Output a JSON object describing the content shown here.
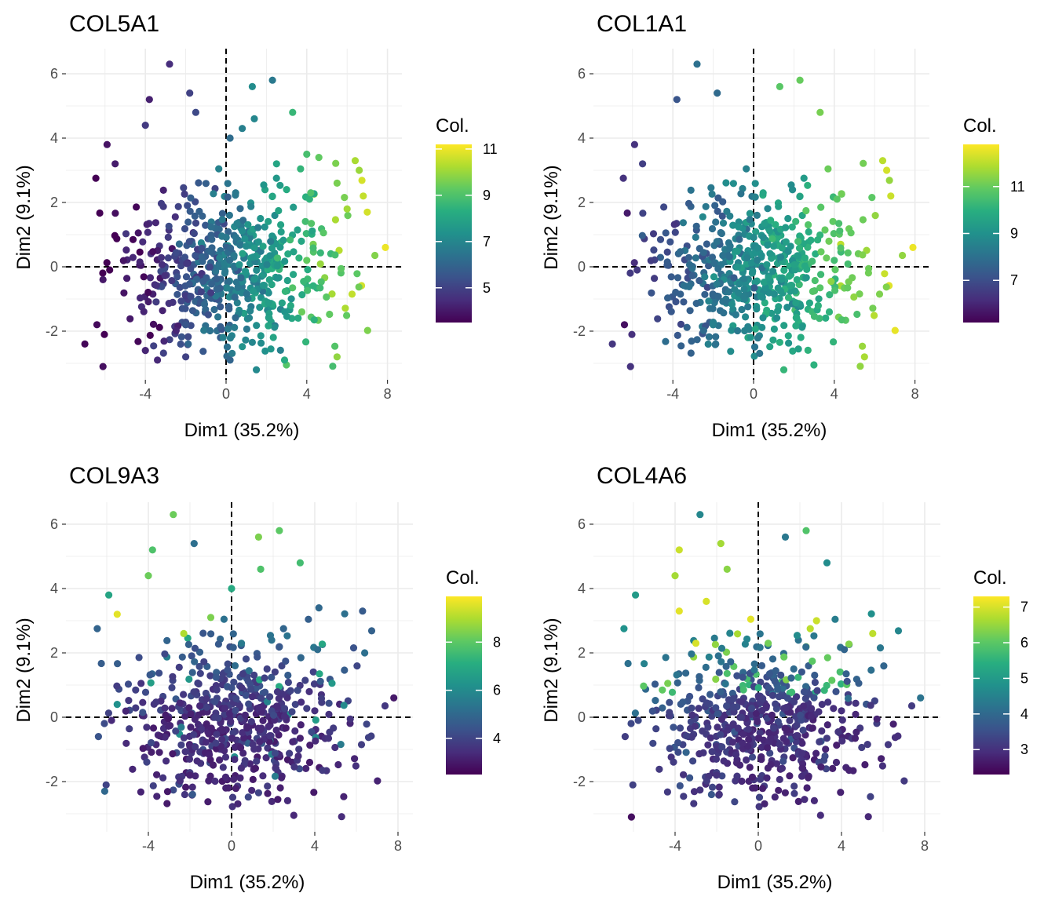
{
  "chart_data": [
    {
      "type": "scatter",
      "title": "COL5A1",
      "xlabel": "Dim1 (35.2%)",
      "ylabel": "Dim2 (9.1%)",
      "xlim": [
        -7.0,
        8.8
      ],
      "ylim": [
        -3.5,
        6.6
      ],
      "xticks": [
        "-4",
        "0",
        "4",
        "8"
      ],
      "yticks": [
        "-2",
        "0",
        "2",
        "4",
        "6"
      ],
      "legend_title": "Col.",
      "legend_ticks": [
        "5",
        "7",
        "9",
        "11"
      ],
      "color_range": [
        3.5,
        11.2
      ],
      "legend_position": "right",
      "colormap": "viridis",
      "grid": true,
      "reference_lines": {
        "x": 0,
        "y": 0,
        "style": "dashed"
      },
      "points": [
        {
          "x": -2.8,
          "y": 6.3,
          "c": 4.5
        },
        {
          "x": 1.3,
          "y": 5.6,
          "c": 7.2
        },
        {
          "x": 2.3,
          "y": 5.8,
          "c": 6.6
        },
        {
          "x": 3.3,
          "y": 4.8,
          "c": 8.6
        },
        {
          "x": -3.8,
          "y": 5.2,
          "c": 4.2
        },
        {
          "x": -1.8,
          "y": 5.4,
          "c": 5.0
        },
        {
          "x": -5.9,
          "y": 3.8,
          "c": 3.9
        },
        {
          "x": -5.5,
          "y": 3.2,
          "c": 4.1
        },
        {
          "x": -4.0,
          "y": 4.4,
          "c": 4.8
        },
        {
          "x": -1.5,
          "y": 4.8,
          "c": 5.2
        },
        {
          "x": 0.8,
          "y": 4.3,
          "c": 6.8
        },
        {
          "x": 1.4,
          "y": 4.6,
          "c": 7.0
        },
        {
          "x": 0.2,
          "y": 4.0,
          "c": 6.2
        },
        {
          "x": 4.0,
          "y": 3.5,
          "c": 8.9
        },
        {
          "x": 4.6,
          "y": 3.4,
          "c": 9.3
        },
        {
          "x": 6.4,
          "y": 3.3,
          "c": 10.2
        },
        {
          "x": 6.6,
          "y": 3.0,
          "c": 10.0
        },
        {
          "x": 5.5,
          "y": 2.6,
          "c": 9.6
        },
        {
          "x": 6.8,
          "y": 2.2,
          "c": 10.5
        },
        {
          "x": 7.0,
          "y": 1.7,
          "c": 10.7
        },
        {
          "x": 7.9,
          "y": 0.6,
          "c": 11.0
        },
        {
          "x": 6.0,
          "y": 1.8,
          "c": 10.1
        },
        {
          "x": 4.2,
          "y": 2.3,
          "c": 9.0
        },
        {
          "x": 2.5,
          "y": 3.2,
          "c": 8.0
        },
        {
          "x": 3.0,
          "y": 2.4,
          "c": 8.2
        },
        {
          "x": -6.1,
          "y": -0.4,
          "c": 4.0
        },
        {
          "x": -6.4,
          "y": -1.8,
          "c": 3.7
        },
        {
          "x": -7.0,
          "y": -2.4,
          "c": 3.6
        },
        {
          "x": -6.1,
          "y": -3.1,
          "c": 3.8
        },
        {
          "x": -4.0,
          "y": -2.6,
          "c": 4.3
        },
        {
          "x": -3.4,
          "y": -2.9,
          "c": 4.4
        },
        {
          "x": -2.0,
          "y": -2.8,
          "c": 5.0
        },
        {
          "x": 0.2,
          "y": -2.9,
          "c": 6.0
        },
        {
          "x": 1.5,
          "y": -3.2,
          "c": 7.1
        },
        {
          "x": 2.9,
          "y": -2.9,
          "c": 8.2
        },
        {
          "x": 5.5,
          "y": -2.8,
          "c": 9.9
        }
      ],
      "generated_cloud": {
        "count": 560,
        "seed": 101,
        "gradient": "increases with Dim1"
      }
    },
    {
      "type": "scatter",
      "title": "COL1A1",
      "xlabel": "Dim1 (35.2%)",
      "ylabel": "Dim2 (9.1%)",
      "xlim": [
        -7.0,
        8.8
      ],
      "ylim": [
        -3.5,
        6.6
      ],
      "xticks": [
        "-4",
        "0",
        "4",
        "8"
      ],
      "yticks": [
        "-2",
        "0",
        "2",
        "4",
        "6"
      ],
      "legend_title": "Col.",
      "legend_ticks": [
        "7",
        "9",
        "11"
      ],
      "color_range": [
        5.2,
        12.8
      ],
      "legend_position": "right",
      "colormap": "viridis",
      "grid": true,
      "reference_lines": {
        "x": 0,
        "y": 0,
        "style": "dashed"
      },
      "points": [
        {
          "x": -2.8,
          "y": 6.3,
          "c": 8.0
        },
        {
          "x": 1.3,
          "y": 5.6,
          "c": 10.8
        },
        {
          "x": 2.3,
          "y": 5.8,
          "c": 11.0
        },
        {
          "x": 3.3,
          "y": 4.8,
          "c": 11.2
        },
        {
          "x": -3.8,
          "y": 5.2,
          "c": 7.2
        },
        {
          "x": -1.8,
          "y": 5.4,
          "c": 7.8
        },
        {
          "x": -5.9,
          "y": 3.8,
          "c": 6.3
        },
        {
          "x": -5.5,
          "y": 3.2,
          "c": 6.6
        },
        {
          "x": 6.4,
          "y": 3.3,
          "c": 12.0
        },
        {
          "x": 6.8,
          "y": 2.2,
          "c": 12.2
        },
        {
          "x": 7.9,
          "y": 0.6,
          "c": 12.6
        },
        {
          "x": 6.6,
          "y": 3.0,
          "c": 12.3
        },
        {
          "x": -6.1,
          "y": -3.1,
          "c": 6.3
        },
        {
          "x": -7.0,
          "y": -2.4,
          "c": 6.4
        },
        {
          "x": -6.4,
          "y": -1.8,
          "c": 5.5
        },
        {
          "x": 1.5,
          "y": -3.2,
          "c": 10.2
        },
        {
          "x": 5.5,
          "y": -2.8,
          "c": 11.8
        }
      ],
      "generated_cloud": {
        "count": 560,
        "seed": 202,
        "gradient": "increases with Dim1"
      }
    },
    {
      "type": "scatter",
      "title": "COL9A3",
      "xlabel": "Dim1 (35.2%)",
      "ylabel": "Dim2 (9.1%)",
      "xlim": [
        -7.0,
        8.6
      ],
      "ylim": [
        -3.5,
        6.6
      ],
      "xticks": [
        "-4",
        "0",
        "4",
        "8"
      ],
      "yticks": [
        "-2",
        "0",
        "2",
        "4",
        "6"
      ],
      "legend_title": "Col.",
      "legend_ticks": [
        "4",
        "6",
        "8"
      ],
      "color_range": [
        2.5,
        9.9
      ],
      "legend_position": "right",
      "colormap": "viridis",
      "grid": true,
      "reference_lines": {
        "x": 0,
        "y": 0,
        "style": "dashed"
      },
      "points": [
        {
          "x": -2.8,
          "y": 6.3,
          "c": 8.2
        },
        {
          "x": 1.3,
          "y": 5.6,
          "c": 8.4
        },
        {
          "x": 2.3,
          "y": 5.8,
          "c": 8.0
        },
        {
          "x": 3.3,
          "y": 4.8,
          "c": 7.6
        },
        {
          "x": -3.8,
          "y": 5.2,
          "c": 7.8
        },
        {
          "x": -1.8,
          "y": 5.4,
          "c": 5.2
        },
        {
          "x": -5.9,
          "y": 3.8,
          "c": 6.8
        },
        {
          "x": -5.5,
          "y": 3.2,
          "c": 9.6
        },
        {
          "x": -4.0,
          "y": 4.4,
          "c": 8.2
        },
        {
          "x": -2.3,
          "y": 2.6,
          "c": 9.0
        },
        {
          "x": -1.0,
          "y": 3.1,
          "c": 8.4
        },
        {
          "x": 1.4,
          "y": 4.6,
          "c": 7.8
        },
        {
          "x": 0.0,
          "y": 4.0,
          "c": 7.0
        },
        {
          "x": 4.2,
          "y": 3.4,
          "c": 5.0
        },
        {
          "x": 6.3,
          "y": 3.3,
          "c": 4.6
        },
        {
          "x": 6.4,
          "y": 2.0,
          "c": 5.2
        },
        {
          "x": -6.4,
          "y": -0.6,
          "c": 4.4
        },
        {
          "x": -6.1,
          "y": -2.3,
          "c": 5.0
        },
        {
          "x": -5.5,
          "y": 0.4,
          "c": 6.2
        },
        {
          "x": 7.8,
          "y": 0.6,
          "c": 3.0
        }
      ],
      "generated_cloud": {
        "count": 560,
        "seed": 303,
        "gradient": "mostly low, higher in upper area"
      }
    },
    {
      "type": "scatter",
      "title": "COL4A6",
      "xlabel": "Dim1 (35.2%)",
      "ylabel": "Dim2 (9.1%)",
      "xlim": [
        -7.0,
        8.6
      ],
      "ylim": [
        -3.5,
        6.6
      ],
      "xticks": [
        "-4",
        "0",
        "4",
        "8"
      ],
      "yticks": [
        "-2",
        "0",
        "2",
        "4",
        "6"
      ],
      "legend_title": "Col.",
      "legend_ticks": [
        "3",
        "4",
        "5",
        "6",
        "7"
      ],
      "color_range": [
        2.3,
        7.3
      ],
      "legend_position": "right",
      "colormap": "viridis",
      "grid": true,
      "reference_lines": {
        "x": 0,
        "y": 0,
        "style": "dashed"
      },
      "points": [
        {
          "x": -2.8,
          "y": 6.3,
          "c": 4.6
        },
        {
          "x": 1.3,
          "y": 5.6,
          "c": 4.3
        },
        {
          "x": 2.3,
          "y": 5.8,
          "c": 5.9
        },
        {
          "x": 3.3,
          "y": 4.8,
          "c": 4.7
        },
        {
          "x": -3.8,
          "y": 5.2,
          "c": 6.9
        },
        {
          "x": -1.8,
          "y": 5.4,
          "c": 6.6
        },
        {
          "x": -1.5,
          "y": 4.6,
          "c": 6.4
        },
        {
          "x": -5.9,
          "y": 3.8,
          "c": 5.0
        },
        {
          "x": -4.0,
          "y": 4.4,
          "c": 6.6
        },
        {
          "x": -3.8,
          "y": 3.3,
          "c": 7.1
        },
        {
          "x": -2.5,
          "y": 3.6,
          "c": 7.0
        },
        {
          "x": 5.5,
          "y": 2.6,
          "c": 6.8
        },
        {
          "x": 2.8,
          "y": 3.0,
          "c": 6.9
        },
        {
          "x": -3.0,
          "y": 2.3,
          "c": 7.0
        },
        {
          "x": 7.8,
          "y": 0.6,
          "c": 4.2
        },
        {
          "x": -6.4,
          "y": -0.6,
          "c": 3.2
        },
        {
          "x": -6.1,
          "y": -3.1,
          "c": 2.5
        }
      ],
      "generated_cloud": {
        "count": 560,
        "seed": 404,
        "gradient": "mostly low, higher in upper-left area"
      }
    }
  ]
}
